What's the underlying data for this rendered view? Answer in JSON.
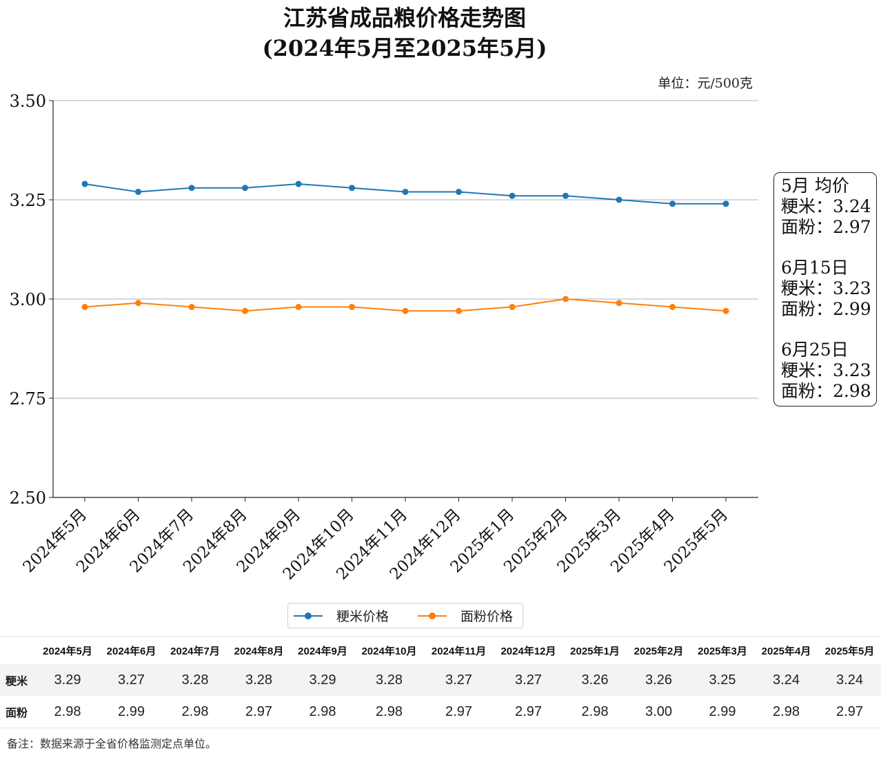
{
  "chart_data": {
    "type": "line",
    "title": "江苏省成品粮价格走势图",
    "subtitle": "(2024年5月至2025年5月)",
    "unit_note": "单位：元/500克",
    "categories": [
      "2024年5月",
      "2024年6月",
      "2024年7月",
      "2024年8月",
      "2024年9月",
      "2024年10月",
      "2024年11月",
      "2024年12月",
      "2025年1月",
      "2025年2月",
      "2025年3月",
      "2025年4月",
      "2025年5月"
    ],
    "series": [
      {
        "name": "粳米价格",
        "color": "#1f77b4",
        "values": [
          3.29,
          3.27,
          3.28,
          3.28,
          3.29,
          3.28,
          3.27,
          3.27,
          3.26,
          3.26,
          3.25,
          3.24,
          3.24
        ]
      },
      {
        "name": "面粉价格",
        "color": "#ff7f0e",
        "values": [
          2.98,
          2.99,
          2.98,
          2.97,
          2.98,
          2.98,
          2.97,
          2.97,
          2.98,
          3.0,
          2.99,
          2.98,
          2.97
        ]
      }
    ],
    "ylim": [
      2.5,
      3.5
    ],
    "yticks": [
      2.5,
      2.75,
      3.0,
      3.25,
      3.5
    ],
    "ytick_labels": [
      "2.50",
      "2.75",
      "3.00",
      "3.25",
      "3.50"
    ],
    "grid": "horizontal",
    "legend": "bottom-center"
  },
  "avg_box": [
    {
      "title": "5月 均价",
      "lines": [
        "粳米：3.24",
        "面粉：2.97"
      ]
    },
    {
      "title": "6月15日",
      "lines": [
        "粳米：3.23",
        "面粉：2.99"
      ]
    },
    {
      "title": "6月25日",
      "lines": [
        "粳米：3.23",
        "面粉：2.98"
      ]
    }
  ],
  "table": {
    "headers": [
      "2024年5月",
      "2024年6月",
      "2024年7月",
      "2024年8月",
      "2024年9月",
      "2024年10月",
      "2024年11月",
      "2024年12月",
      "2025年1月",
      "2025年2月",
      "2025年3月",
      "2025年4月",
      "2025年5月"
    ],
    "rows": [
      {
        "label": "粳米",
        "cells": [
          "3.29",
          "3.27",
          "3.28",
          "3.28",
          "3.29",
          "3.28",
          "3.27",
          "3.27",
          "3.26",
          "3.26",
          "3.25",
          "3.24",
          "3.24"
        ]
      },
      {
        "label": "面粉",
        "cells": [
          "2.98",
          "2.99",
          "2.98",
          "2.97",
          "2.98",
          "2.98",
          "2.97",
          "2.97",
          "2.98",
          "3.00",
          "2.99",
          "2.98",
          "2.97"
        ]
      }
    ]
  },
  "note": "备注：数据来源于全省价格监测定点单位。"
}
